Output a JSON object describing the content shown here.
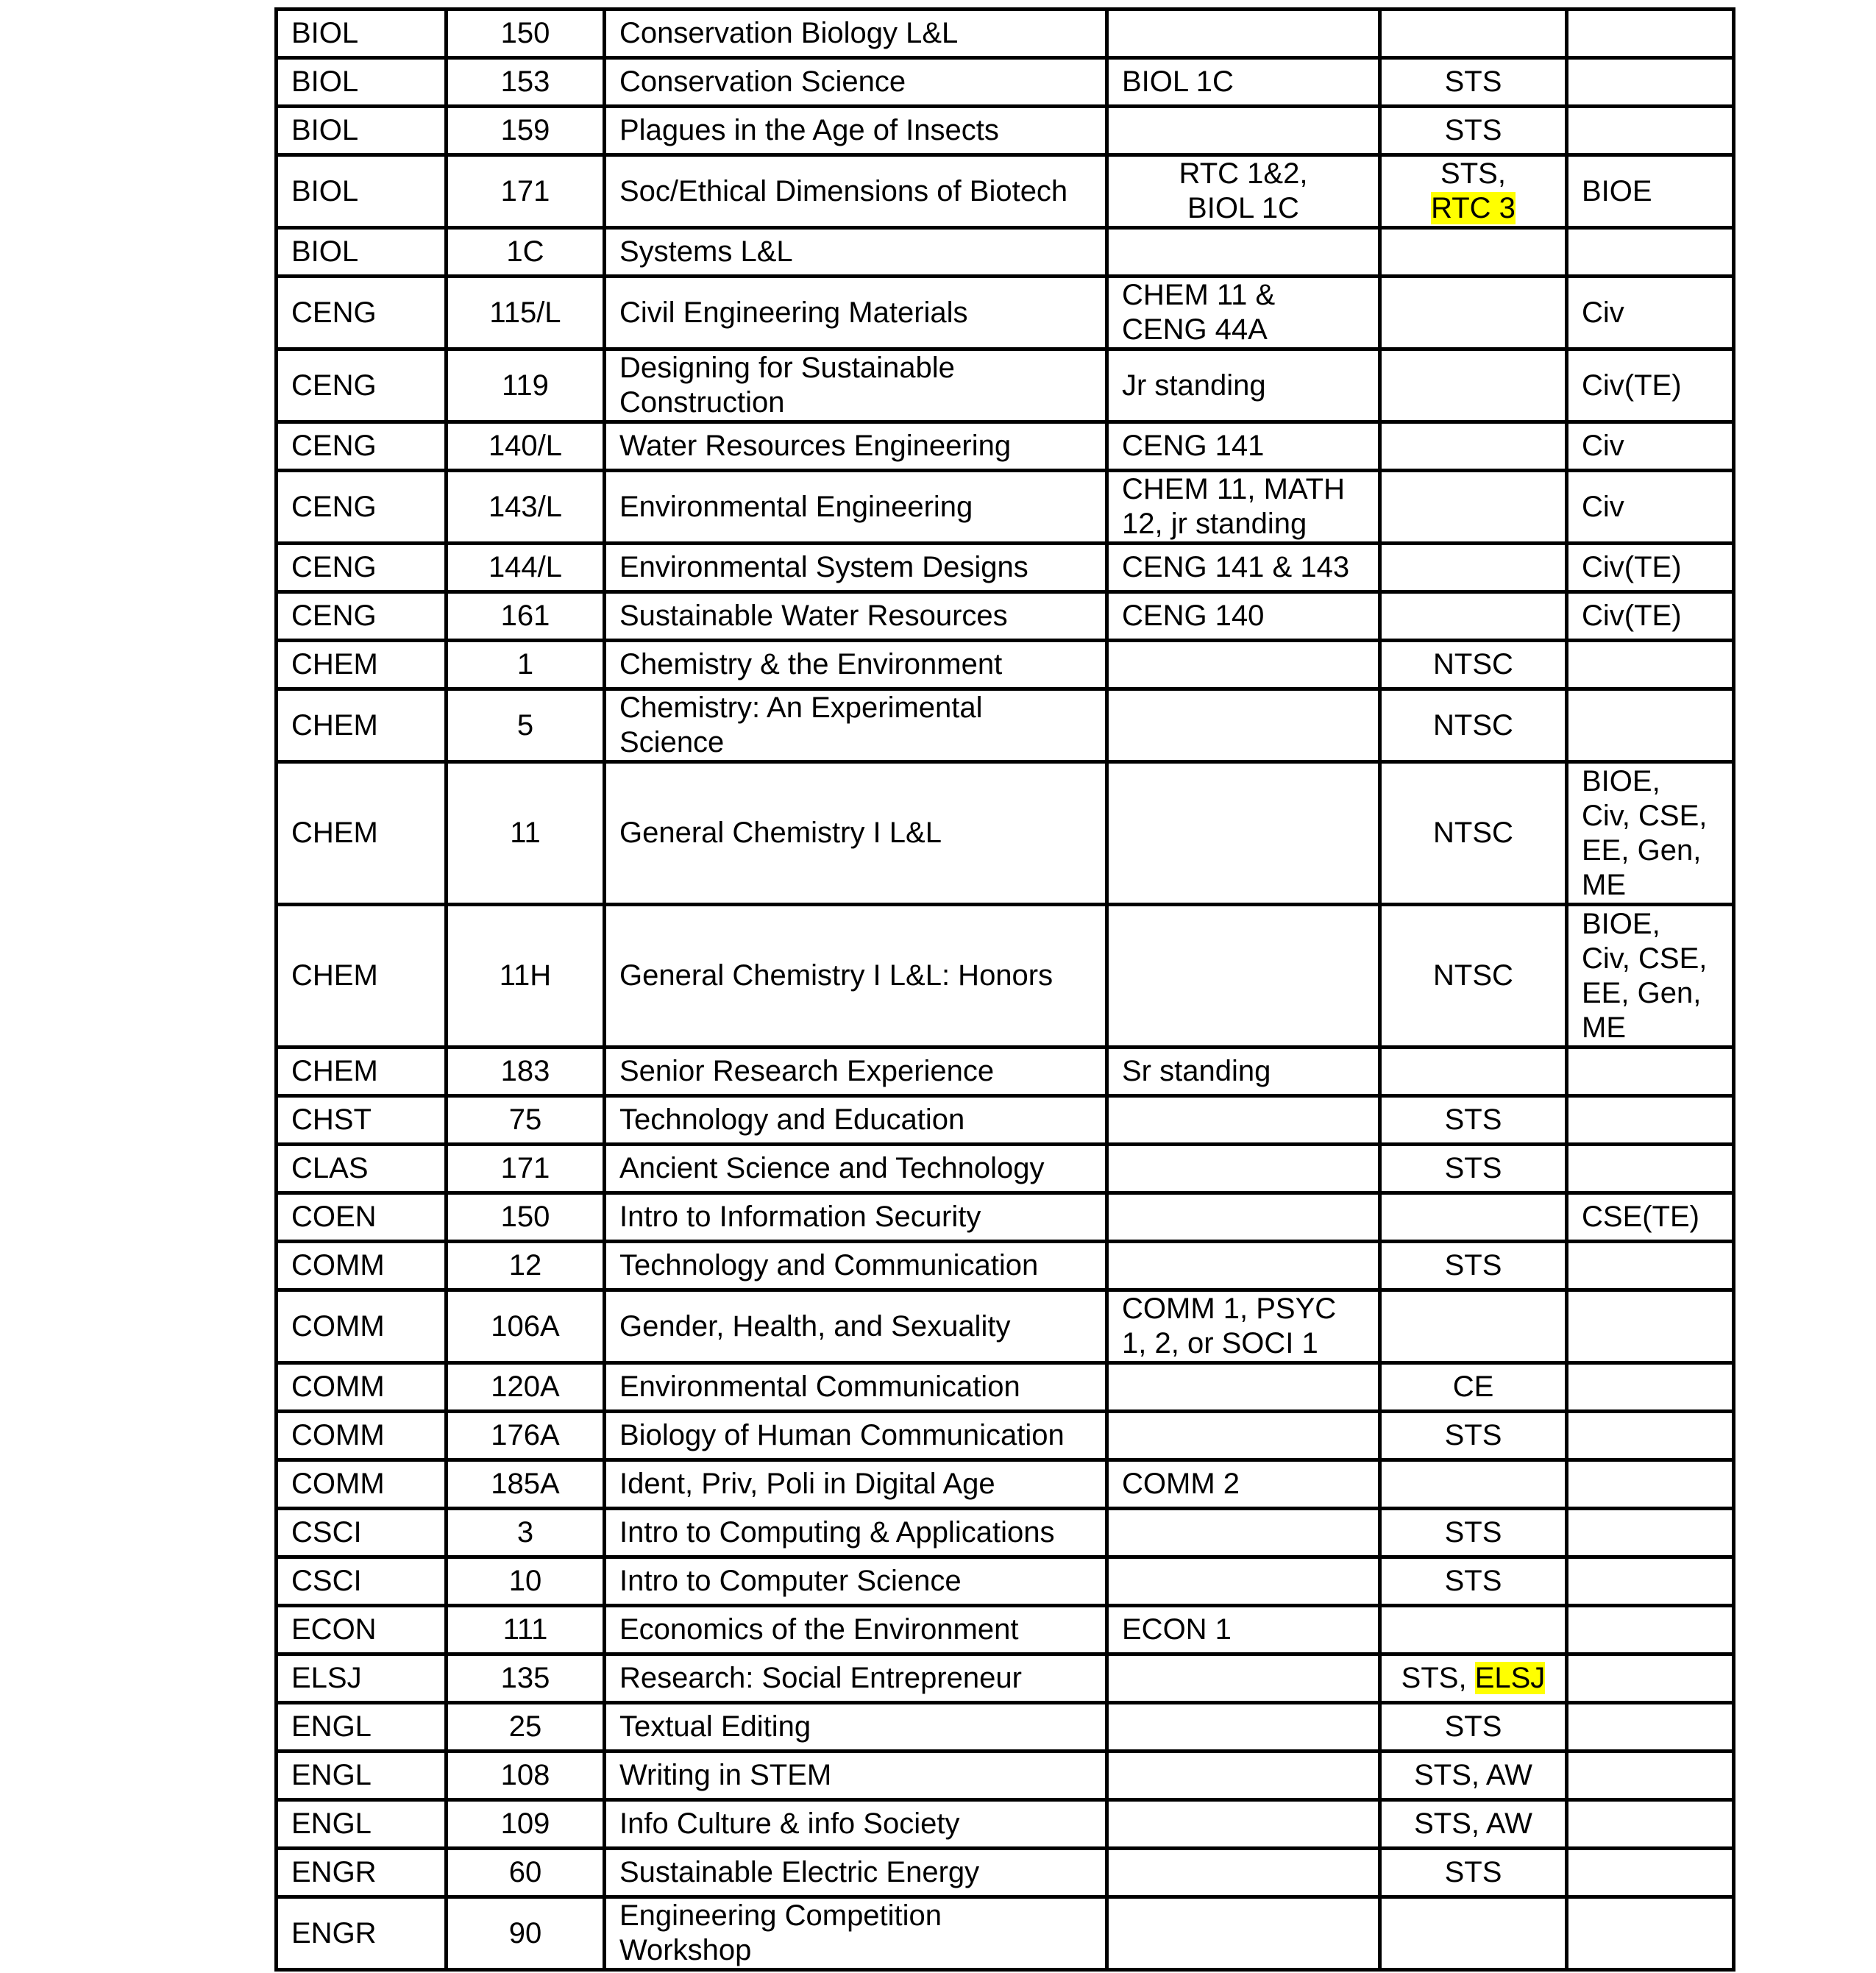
{
  "highlight_color": "#ffff00",
  "rows": [
    {
      "dept": "BIOL",
      "num": "150",
      "title": "Conservation Biology L&L",
      "prereq": "",
      "designation": [],
      "major": ""
    },
    {
      "dept": "BIOL",
      "num": "153",
      "title": "Conservation Science",
      "prereq": "BIOL 1C",
      "designation": [
        {
          "text": "STS"
        }
      ],
      "major": ""
    },
    {
      "dept": "BIOL",
      "num": "159",
      "title": "Plagues in the Age of Insects",
      "prereq": "",
      "designation": [
        {
          "text": "STS"
        }
      ],
      "major": ""
    },
    {
      "dept": "BIOL",
      "num": "171",
      "title": "Soc/Ethical Dimensions of Biotech",
      "prereq": "RTC 1&2,\nBIOL 1C",
      "designation": [
        {
          "text": "STS,\n"
        },
        {
          "text": "RTC 3",
          "highlight": true
        }
      ],
      "major": "BIOE"
    },
    {
      "dept": "BIOL",
      "num": "1C",
      "title": "Systems L&L",
      "prereq": "",
      "designation": [],
      "major": ""
    },
    {
      "dept": "CENG",
      "num": "115/L",
      "title": "Civil Engineering Materials",
      "prereq": "CHEM 11 &\nCENG 44A",
      "designation": [],
      "major": "Civ"
    },
    {
      "dept": "CENG",
      "num": "119",
      "title": "Designing for Sustainable\nConstruction",
      "prereq": "Jr standing",
      "designation": [],
      "major": "Civ(TE)"
    },
    {
      "dept": "CENG",
      "num": "140/L",
      "title": "Water Resources Engineering",
      "prereq": "CENG 141",
      "designation": [],
      "major": "Civ"
    },
    {
      "dept": "CENG",
      "num": "143/L",
      "title": "Environmental Engineering",
      "prereq": "CHEM 11, MATH\n12, jr standing",
      "designation": [],
      "major": "Civ"
    },
    {
      "dept": "CENG",
      "num": "144/L",
      "title": "Environmental System Designs",
      "prereq": "CENG 141 & 143",
      "designation": [],
      "major": "Civ(TE)"
    },
    {
      "dept": "CENG",
      "num": "161",
      "title": "Sustainable Water Resources",
      "prereq": "CENG 140",
      "designation": [],
      "major": "Civ(TE)"
    },
    {
      "dept": "CHEM",
      "num": "1",
      "title": "Chemistry & the Environment",
      "prereq": "",
      "designation": [
        {
          "text": "NTSC"
        }
      ],
      "major": ""
    },
    {
      "dept": "CHEM",
      "num": "5",
      "title": "Chemistry: An Experimental\nScience",
      "prereq": "",
      "designation": [
        {
          "text": "NTSC"
        }
      ],
      "major": ""
    },
    {
      "dept": "CHEM",
      "num": "11",
      "title": "General Chemistry I  L&L",
      "prereq": "",
      "designation": [
        {
          "text": "NTSC"
        }
      ],
      "major": "BIOE,\nCiv, CSE,\nEE, Gen,\nME"
    },
    {
      "dept": "CHEM",
      "num": "11H",
      "title": "General Chemistry I L&L: Honors",
      "prereq": "",
      "designation": [
        {
          "text": "NTSC"
        }
      ],
      "major": "BIOE,\nCiv, CSE,\nEE, Gen,\nME"
    },
    {
      "dept": "CHEM",
      "num": "183",
      "title": "Senior Research Experience",
      "prereq": "Sr standing",
      "designation": [],
      "major": ""
    },
    {
      "dept": "CHST",
      "num": "75",
      "title": "Technology and Education",
      "prereq": "",
      "designation": [
        {
          "text": "STS"
        }
      ],
      "major": ""
    },
    {
      "dept": "CLAS",
      "num": "171",
      "title": "Ancient Science and Technology",
      "prereq": "",
      "designation": [
        {
          "text": "STS"
        }
      ],
      "major": ""
    },
    {
      "dept": "COEN",
      "num": "150",
      "title": "Intro to Information Security",
      "prereq": "",
      "designation": [],
      "major": "CSE(TE)"
    },
    {
      "dept": "COMM",
      "num": "12",
      "title": "Technology and Communication",
      "prereq": "",
      "designation": [
        {
          "text": "STS"
        }
      ],
      "major": ""
    },
    {
      "dept": "COMM",
      "num": "106A",
      "title": "Gender, Health, and Sexuality",
      "prereq": "COMM 1, PSYC\n1, 2, or SOCI 1",
      "designation": [],
      "major": ""
    },
    {
      "dept": "COMM",
      "num": "120A",
      "title": "Environmental Communication",
      "prereq": "",
      "designation": [
        {
          "text": "CE"
        }
      ],
      "major": ""
    },
    {
      "dept": "COMM",
      "num": "176A",
      "title": "Biology of Human Communication",
      "prereq": "",
      "designation": [
        {
          "text": "STS"
        }
      ],
      "major": ""
    },
    {
      "dept": "COMM",
      "num": "185A",
      "title": "Ident, Priv, Poli in Digital Age",
      "prereq": "COMM 2",
      "designation": [],
      "major": ""
    },
    {
      "dept": "CSCI",
      "num": "3",
      "title": "Intro to Computing & Applications",
      "prereq": "",
      "designation": [
        {
          "text": "STS"
        }
      ],
      "major": ""
    },
    {
      "dept": "CSCI",
      "num": "10",
      "title": "Intro to Computer Science",
      "prereq": "",
      "designation": [
        {
          "text": "STS"
        }
      ],
      "major": ""
    },
    {
      "dept": "ECON",
      "num": "111",
      "title": "Economics of the Environment",
      "prereq": "ECON 1",
      "designation": [],
      "major": ""
    },
    {
      "dept": "ELSJ",
      "num": "135",
      "title": "Research: Social Entrepreneur",
      "prereq": "",
      "designation": [
        {
          "text": "STS, "
        },
        {
          "text": "ELSJ",
          "highlight": true
        }
      ],
      "major": ""
    },
    {
      "dept": "ENGL",
      "num": "25",
      "title": "Textual Editing",
      "prereq": "",
      "designation": [
        {
          "text": "STS"
        }
      ],
      "major": ""
    },
    {
      "dept": "ENGL",
      "num": "108",
      "title": "Writing in STEM",
      "prereq": "",
      "designation": [
        {
          "text": "STS, AW"
        }
      ],
      "major": ""
    },
    {
      "dept": "ENGL",
      "num": "109",
      "title": "Info Culture & info Society",
      "prereq": "",
      "designation": [
        {
          "text": "STS, AW"
        }
      ],
      "major": ""
    },
    {
      "dept": "ENGR",
      "num": "60",
      "title": "Sustainable Electric Energy",
      "prereq": "",
      "designation": [
        {
          "text": "STS"
        }
      ],
      "major": ""
    },
    {
      "dept": "ENGR",
      "num": "90",
      "title": "Engineering Competition\nWorkshop",
      "prereq": "",
      "designation": [],
      "major": ""
    }
  ]
}
